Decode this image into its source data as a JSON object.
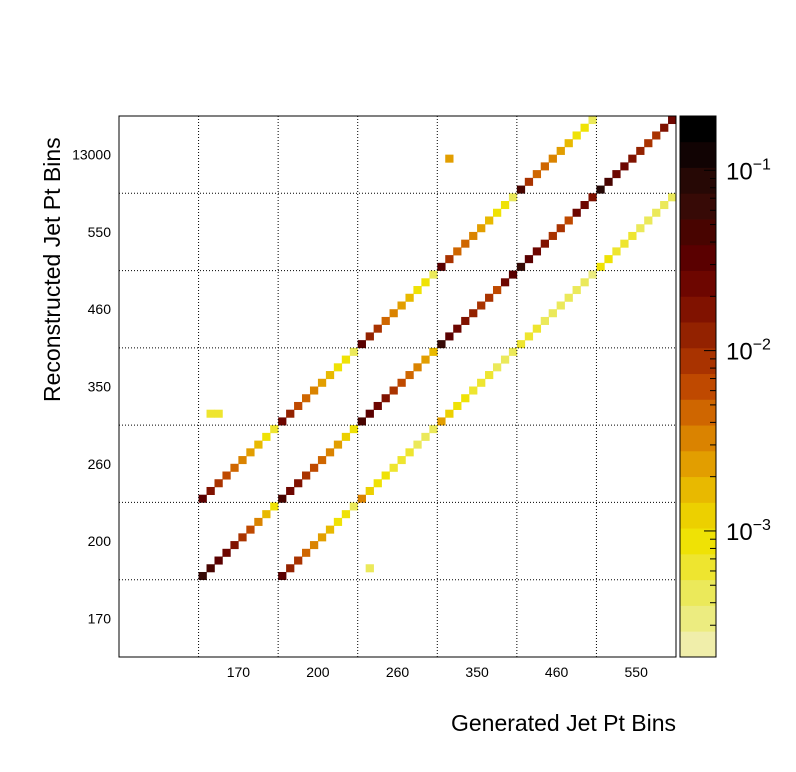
{
  "chart_data": {
    "type": "heatmap",
    "xlabel": "Generated Jet Pt Bins",
    "ylabel": "Reconstructed Jet Pt Bins",
    "x_tick_labels": [
      "170",
      "200",
      "260",
      "350",
      "460",
      "550"
    ],
    "y_tick_labels": [
      "170",
      "200",
      "260",
      "350",
      "460",
      "550",
      "13000"
    ],
    "n_major_x": 7,
    "n_major_y": 7,
    "sub_bins_per_major": 10,
    "grid": true,
    "grid_style": "dotted",
    "color_scale": "log",
    "z_range": [
      0.0002,
      0.2
    ],
    "colorbar_ticks": [
      {
        "value": 0.001,
        "base": "10",
        "exp": "−3"
      },
      {
        "value": 0.01,
        "base": "10",
        "exp": "−2"
      },
      {
        "value": 0.1,
        "base": "10",
        "exp": "−1"
      }
    ],
    "palette": [
      "#f0eeaa",
      "#ecec80",
      "#ebe95a",
      "#eee52f",
      "#efe205",
      "#ecd000",
      "#e8b900",
      "#e29e00",
      "#da8300",
      "#cf6600",
      "#bf4900",
      "#a93300",
      "#932200",
      "#801200",
      "#6d0600",
      "#5a0000",
      "#480400",
      "#370a06",
      "#260805",
      "#110303",
      "#000000"
    ],
    "blocks": [
      {
        "gx": 1,
        "gy": 1,
        "values": [
          0.06,
          0.04,
          0.03,
          0.02,
          0.015,
          0.01,
          0.006,
          0.003,
          0.0015,
          0.0008
        ]
      },
      {
        "gx": 1,
        "gy": 2,
        "values": [
          0.03,
          0.015,
          0.01,
          0.006,
          0.004,
          0.003,
          0.002,
          0.0015,
          0.001,
          0.0006
        ]
      },
      {
        "gx": 1,
        "gy": 3,
        "cells": [
          {
            "i": 1,
            "j": 1,
            "v": 0.0006
          },
          {
            "i": 2,
            "j": 1,
            "v": 0.0006
          }
        ]
      },
      {
        "gx": 2,
        "gy": 1,
        "values": [
          0.03,
          0.012,
          0.008,
          0.005,
          0.003,
          0.002,
          0.0015,
          0.001,
          0.0008,
          0.0005
        ]
      },
      {
        "gx": 2,
        "gy": 2,
        "values": [
          0.05,
          0.025,
          0.015,
          0.01,
          0.006,
          0.004,
          0.003,
          0.002,
          0.0012,
          0.0008
        ]
      },
      {
        "gx": 2,
        "gy": 3,
        "values": [
          0.025,
          0.012,
          0.007,
          0.004,
          0.003,
          0.002,
          0.0015,
          0.001,
          0.0008,
          0.0005
        ]
      },
      {
        "gx": 3,
        "gy": 1,
        "cells": [
          {
            "i": 1,
            "j": 1,
            "v": 0.0005
          }
        ]
      },
      {
        "gx": 3,
        "gy": 2,
        "values": [
          0.003,
          0.0012,
          0.001,
          0.0008,
          0.0007,
          0.0006,
          0.0006,
          0.0005,
          0.0005,
          0.0004
        ]
      },
      {
        "gx": 3,
        "gy": 3,
        "values": [
          0.05,
          0.03,
          0.02,
          0.015,
          0.01,
          0.006,
          0.004,
          0.003,
          0.002,
          0.0015
        ]
      },
      {
        "gx": 3,
        "gy": 4,
        "values": [
          0.03,
          0.012,
          0.008,
          0.005,
          0.003,
          0.002,
          0.0015,
          0.001,
          0.0008,
          0.0005
        ]
      },
      {
        "gx": 4,
        "gy": 3,
        "values": [
          0.002,
          0.0012,
          0.0009,
          0.0008,
          0.0007,
          0.0006,
          0.0006,
          0.0005,
          0.0005,
          0.0004
        ]
      },
      {
        "gx": 4,
        "gy": 4,
        "values": [
          0.06,
          0.03,
          0.02,
          0.015,
          0.012,
          0.01,
          0.008,
          0.006,
          0.025,
          0.03
        ]
      },
      {
        "gx": 4,
        "gy": 5,
        "values": [
          0.03,
          0.008,
          0.005,
          0.004,
          0.003,
          0.002,
          0.0015,
          0.001,
          0.0008,
          0.0005
        ]
      },
      {
        "gx": 4,
        "gy": 6,
        "cells": [
          {
            "i": 1,
            "j": 4,
            "v": 0.002
          }
        ]
      },
      {
        "gx": 5,
        "gy": 4,
        "values": [
          0.0007,
          0.0006,
          0.0006,
          0.0005,
          0.0005,
          0.0005,
          0.0004,
          0.0004,
          0.0004,
          0.0003
        ]
      },
      {
        "gx": 5,
        "gy": 5,
        "values": [
          0.07,
          0.03,
          0.02,
          0.015,
          0.01,
          0.008,
          0.006,
          0.02,
          0.025,
          0.015
        ]
      },
      {
        "gx": 5,
        "gy": 6,
        "values": [
          0.04,
          0.008,
          0.005,
          0.004,
          0.003,
          0.002,
          0.0015,
          0.001,
          0.0008,
          0.0005
        ]
      },
      {
        "gx": 6,
        "gy": 5,
        "values": [
          0.001,
          0.0008,
          0.0007,
          0.0006,
          0.0006,
          0.0005,
          0.0005,
          0.0005,
          0.0004,
          0.0004
        ]
      },
      {
        "gx": 6,
        "gy": 6,
        "values": [
          0.08,
          0.04,
          0.025,
          0.02,
          0.015,
          0.012,
          0.01,
          0.008,
          0.015,
          0.02
        ]
      }
    ]
  }
}
